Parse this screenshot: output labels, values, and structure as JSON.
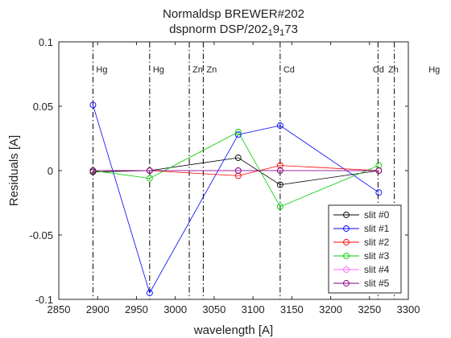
{
  "chart_data": {
    "type": "line",
    "title": "Normaldsp BREWER#202",
    "subtitle": "dspnorm DSP/202 9 73",
    "subtitle_parts": [
      "dspnorm DSP/202",
      "1",
      "9",
      "1",
      "73"
    ],
    "xlabel": "wavelength [A]",
    "ylabel": "Residuals [A]",
    "xlim": [
      2850,
      3300
    ],
    "ylim": [
      -0.1,
      0.1
    ],
    "xticks": [
      2850,
      2900,
      2950,
      3000,
      3050,
      3100,
      3150,
      3200,
      3250,
      3300
    ],
    "yticks": [
      -0.1,
      -0.05,
      0,
      0.05,
      0.1
    ],
    "ytick_labels": [
      "-0.1",
      "-0.05",
      "0",
      "0.05",
      "0.1"
    ],
    "grid": false,
    "legend_position": "bottom-right",
    "x": [
      2894,
      2967,
      3081,
      3135,
      3262
    ],
    "series": [
      {
        "name": "slit #0",
        "color": "#000000",
        "values": [
          -0.001,
          0.0,
          0.01,
          -0.011,
          0.0
        ]
      },
      {
        "name": "slit #1",
        "color": "#0000ff",
        "values": [
          0.051,
          -0.095,
          0.028,
          0.035,
          -0.017
        ]
      },
      {
        "name": "slit #2",
        "color": "#ff0000",
        "values": [
          0.0,
          0.0,
          -0.004,
          0.004,
          0.0
        ]
      },
      {
        "name": "slit #3",
        "color": "#00cc00",
        "values": [
          0.0,
          -0.006,
          0.03,
          -0.028,
          0.004
        ]
      },
      {
        "name": "slit #4",
        "color": "#ff66ff",
        "values": [
          0.0,
          0.0,
          0.0,
          0.0,
          0.0
        ]
      },
      {
        "name": "slit #5",
        "color": "#800080",
        "values": [
          0.0,
          0.0,
          0.0,
          0.0,
          0.0
        ]
      }
    ],
    "reference_lines": {
      "color": "#ff0000",
      "values": [
        -0.1,
        0.1
      ]
    },
    "lamp_lines": [
      {
        "x": 2894,
        "label": "Hg",
        "label_x": 2894
      },
      {
        "x": 2967,
        "label": "Hg",
        "label_x": 2967
      },
      {
        "x": 3018,
        "label": "Zn",
        "label_x": 3018
      },
      {
        "x": 3036,
        "label": "Zn",
        "label_x": 3036
      },
      {
        "x": 3135,
        "label": "Cd",
        "label_x": 3135
      },
      {
        "x": 3261,
        "label": "Cd",
        "label_x": 3250
      },
      {
        "x": 3282,
        "label": "Zn",
        "label_x": 3270
      },
      {
        "x": 3312,
        "label": "Hg",
        "label_x": 3322
      }
    ]
  }
}
